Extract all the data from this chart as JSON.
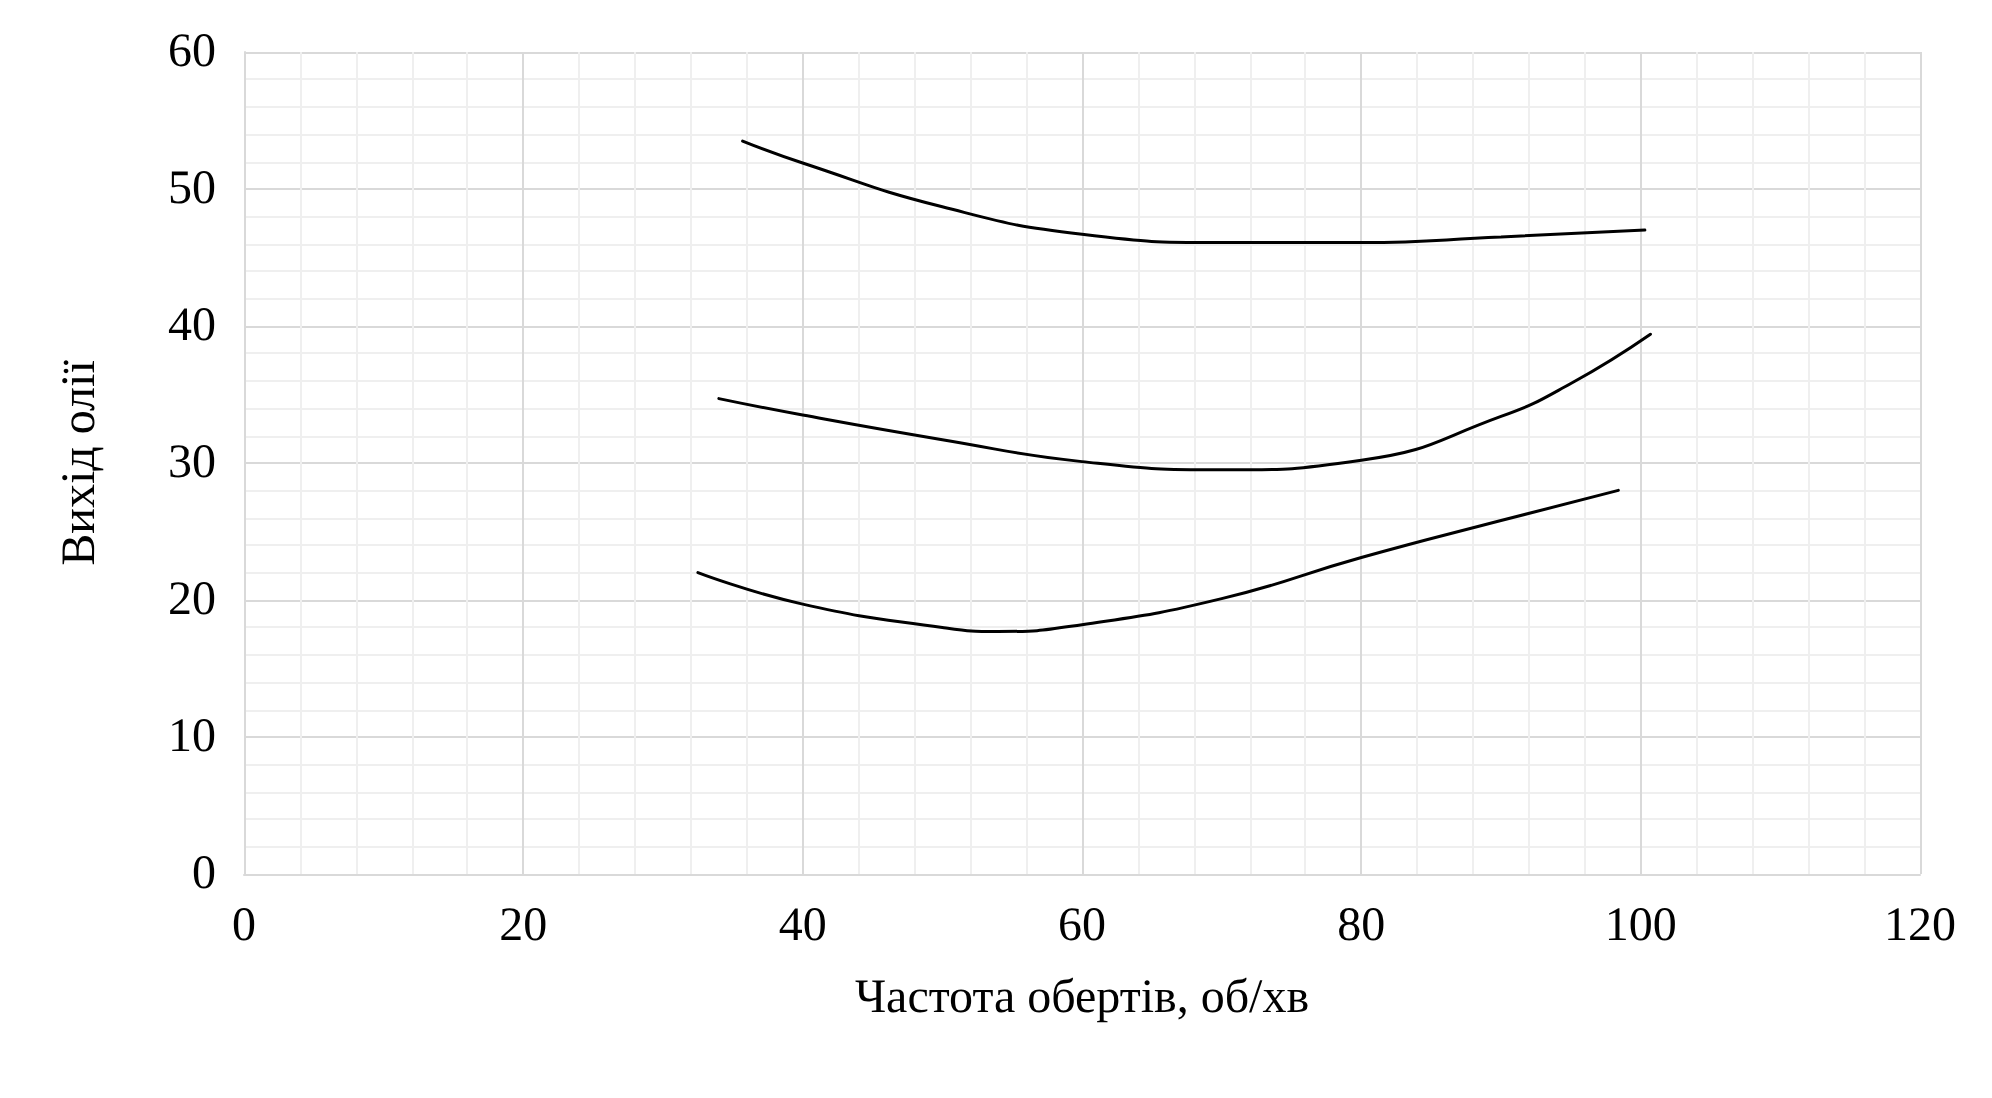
{
  "chart_data": {
    "type": "line",
    "xlabel": "Частота обертів, об/хв",
    "ylabel": "Вихід олії",
    "xlim": [
      0,
      120
    ],
    "xticks": [
      0,
      20,
      40,
      60,
      80,
      100,
      120
    ],
    "ylim": [
      0,
      60
    ],
    "yticks": [
      0,
      10,
      20,
      30,
      40,
      50,
      60
    ],
    "grid": true,
    "marker": "none",
    "line_style": "solid",
    "series": [
      {
        "color": "#000000",
        "x": [
          35.7,
          40,
          50,
          60,
          70,
          80,
          90,
          100.3
        ],
        "values": [
          53.5,
          51.9,
          48.7,
          46.7,
          46.1,
          46.1,
          46.5,
          47.0
        ]
      },
      {
        "color": "#000000",
        "x": [
          34.0,
          40,
          50,
          60,
          70,
          80,
          90,
          95,
          100.7
        ],
        "values": [
          34.7,
          33.5,
          31.7,
          30.1,
          29.5,
          30.2,
          33.4,
          35.8,
          39.4
        ]
      },
      {
        "color": "#000000",
        "x": [
          32.5,
          40,
          50,
          54,
          60,
          70,
          80,
          90,
          98.4
        ],
        "values": [
          22.0,
          19.7,
          18.0,
          17.7,
          18.2,
          20.1,
          23.1,
          25.8,
          28.0
        ]
      }
    ]
  }
}
